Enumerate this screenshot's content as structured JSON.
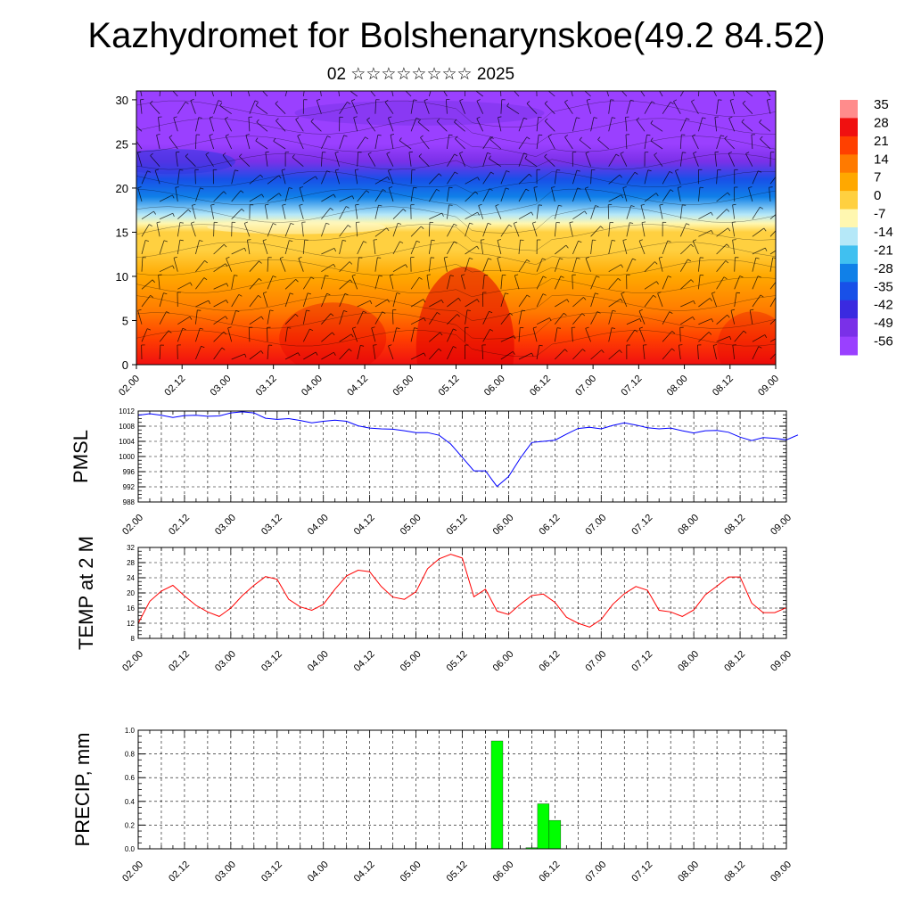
{
  "header": {
    "title": "Kazhydromet for Bolshenarynskoe(49.2 84.52)",
    "subtitle": "02 ☆☆☆☆☆☆☆☆ 2025"
  },
  "chart_data": [
    {
      "type": "heatmap",
      "name": "cross-section",
      "xlabel": "",
      "ylabel": "",
      "x_ticks": [
        "02.00",
        "02.12",
        "03.00",
        "03.12",
        "04.00",
        "04.12",
        "05.00",
        "05.12",
        "06.00",
        "06.12",
        "07.00",
        "07.12",
        "08.00",
        "08.12",
        "09.00"
      ],
      "y_ticks": [
        0,
        5,
        10,
        15,
        20,
        25,
        30
      ],
      "ylim": [
        0,
        31
      ],
      "levels": [
        35,
        28,
        21,
        14,
        7,
        0,
        -7,
        -14,
        -21,
        -28,
        -35,
        -42,
        -49,
        -56
      ],
      "colors": [
        "#ff8c8c",
        "#f01010",
        "#ff4000",
        "#ff7a00",
        "#ffa800",
        "#ffd040",
        "#fff7b0",
        "#b5e8f8",
        "#40c0f0",
        "#1080e8",
        "#1850e8",
        "#3a2ae0",
        "#7a30e8",
        "#9a40ff"
      ],
      "temperature_profile": {
        "heights": [
          0,
          3,
          6,
          10,
          13,
          15,
          16,
          17,
          19,
          21,
          23,
          25,
          27,
          29,
          31
        ],
        "values_mid": [
          28,
          24,
          20,
          13,
          6,
          1,
          -3,
          -12,
          -22,
          -32,
          -44,
          -50,
          -52,
          -54,
          -55
        ]
      },
      "wind_barbs": true,
      "grid": false
    },
    {
      "type": "line",
      "name": "pmsl",
      "ylabel": "PMSL",
      "color": "#0000ff",
      "ylim": [
        988,
        1012
      ],
      "y_ticks": [
        988,
        992,
        996,
        1000,
        1004,
        1008,
        1012
      ],
      "x_ticks": [
        "02.00",
        "02.12",
        "03.00",
        "03.12",
        "04.00",
        "04.12",
        "05.00",
        "05.12",
        "06.00",
        "06.12",
        "07.00",
        "07.12",
        "08.00",
        "08.12",
        "09.00"
      ],
      "x_step_hours": 3,
      "values": [
        1010.9,
        1011.3,
        1010.9,
        1010.3,
        1010.8,
        1010.9,
        1010.6,
        1010.7,
        1011.5,
        1011.8,
        1011.5,
        1010.1,
        1009.8,
        1010.0,
        1009.5,
        1008.9,
        1009.3,
        1009.6,
        1009.3,
        1008.1,
        1007.5,
        1007.3,
        1007.2,
        1006.8,
        1006.3,
        1006.3,
        1005.6,
        1003.3,
        999.8,
        996.2,
        996.2,
        992.1,
        994.7,
        999.5,
        1003.7,
        1004.0,
        1004.3,
        1005.9,
        1007.4,
        1007.7,
        1007.3,
        1008.2,
        1008.9,
        1008.3,
        1007.6,
        1007.3,
        1007.5,
        1006.8,
        1006.2,
        1006.8,
        1006.9,
        1006.4,
        1005.1,
        1004.2,
        1005.0,
        1004.8,
        1004.4,
        1005.7
      ]
    },
    {
      "type": "line",
      "name": "temp2m",
      "ylabel": "TEMP at 2 M",
      "color": "#ff0000",
      "ylim": [
        8,
        32
      ],
      "y_ticks": [
        8,
        12,
        16,
        20,
        24,
        28,
        32
      ],
      "x_ticks": [
        "02.00",
        "02.12",
        "03.00",
        "03.12",
        "04.00",
        "04.12",
        "05.00",
        "05.12",
        "06.00",
        "06.12",
        "07.00",
        "07.12",
        "08.00",
        "08.12",
        "09.00"
      ],
      "x_step_hours": 3,
      "values": [
        12.0,
        17.8,
        20.5,
        22.0,
        19.2,
        16.7,
        15.0,
        13.8,
        16.0,
        19.3,
        22.0,
        24.3,
        23.6,
        18.3,
        16.3,
        15.4,
        17.0,
        21.0,
        24.5,
        26.0,
        25.6,
        21.7,
        18.9,
        18.3,
        20.3,
        26.4,
        29.0,
        30.2,
        29.2,
        19.0,
        21.0,
        15.2,
        14.3,
        17.0,
        19.3,
        19.7,
        17.5,
        13.6,
        12.0,
        11.0,
        13.0,
        17.0,
        19.8,
        21.7,
        20.7,
        15.4,
        15.0,
        13.8,
        15.5,
        19.5,
        21.8,
        24.2,
        24.2,
        17.3,
        14.8,
        14.8,
        16.1
      ]
    },
    {
      "type": "bar",
      "name": "precip",
      "ylabel": "PRECIP, mm",
      "color": "#00ff00",
      "ylim": [
        0,
        1.0
      ],
      "y_ticks": [
        "0.0",
        "0.2",
        "0.4",
        "0.6",
        "0.8",
        "1.0"
      ],
      "x_ticks": [
        "02.00",
        "02.12",
        "03.00",
        "03.12",
        "04.00",
        "04.12",
        "05.00",
        "05.12",
        "06.00",
        "06.12",
        "07.00",
        "07.12",
        "08.00",
        "08.12",
        "09.00"
      ],
      "x_step_hours": 3,
      "values": [
        0,
        0,
        0,
        0,
        0,
        0,
        0,
        0,
        0,
        0,
        0,
        0,
        0,
        0,
        0,
        0,
        0,
        0,
        0,
        0,
        0,
        0,
        0,
        0,
        0,
        0,
        0,
        0,
        0,
        0,
        0,
        0.91,
        0,
        0,
        0.01,
        0.38,
        0.24,
        0,
        0,
        0,
        0,
        0,
        0,
        0,
        0,
        0,
        0,
        0,
        0,
        0,
        0,
        0,
        0,
        0,
        0,
        0
      ]
    }
  ]
}
